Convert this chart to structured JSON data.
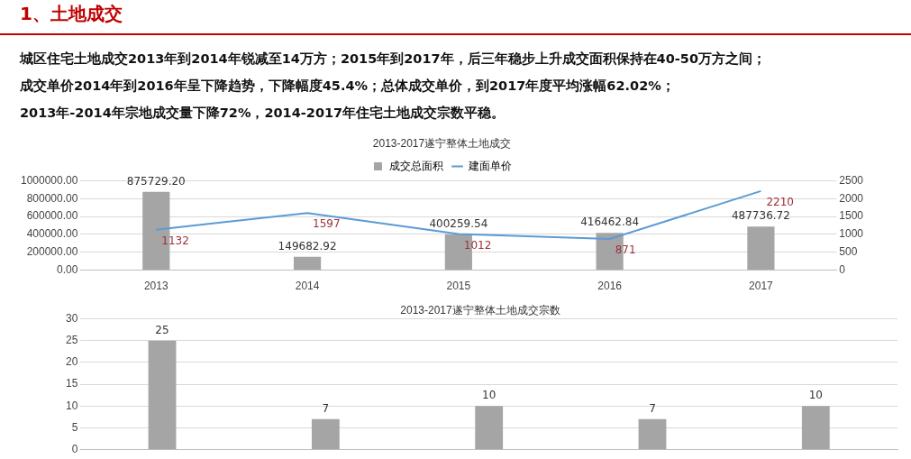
{
  "chart_data": [
    {
      "type": "bar",
      "title": "2013-2017遂宁整体土地成交",
      "annotations": [
        "1、土地成交",
        "城区住宅土地成交2013年到2014年锐减至14万方；2015年到2017年，后三年稳步上升成交面积保持在40-50万方之间；",
        "成交单价2014年到2016年呈下降趋势，下降幅度45.4%；总体成交单价，到2017年度平均涨幅62.02%；",
        "2013年-2014年宗地成交量下降72%，2014-2017年住宅土地成交宗数平稳。"
      ],
      "categories": [
        "2013",
        "2014",
        "2015",
        "2016",
        "2017"
      ],
      "series": [
        {
          "name": "成交总面积",
          "color": "#a5a5a5",
          "values": [
            875729.2,
            149682.92,
            400259.54,
            416462.84,
            487736.72
          ],
          "value_labels": [
            "875729.20",
            "149682.92",
            "400259.54",
            "416462.84",
            "487736.72"
          ]
        },
        {
          "name": "建面单价",
          "type": "line",
          "axis": "y2",
          "color": "#5b9bd5",
          "values": [
            1132,
            1597,
            1012,
            871,
            2210
          ],
          "value_labels": [
            "1132",
            "1597",
            "1012",
            "871",
            "2210"
          ]
        }
      ],
      "ylim": [
        0,
        1000000
      ],
      "yticks": [
        {
          "value": 0,
          "label": "0.00"
        },
        {
          "value": 200000,
          "label": "200000.00"
        },
        {
          "value": 400000,
          "label": "400000.00"
        },
        {
          "value": 600000,
          "label": "600000.00"
        },
        {
          "value": 800000,
          "label": "800000.00"
        },
        {
          "value": 1000000,
          "label": "1000000.00"
        }
      ],
      "y2lim": [
        0,
        2500
      ],
      "y2ticks": [
        0,
        500,
        1000,
        1500,
        2000,
        2500
      ],
      "grid": "y",
      "legend": "top",
      "marker": "none"
    },
    {
      "type": "bar",
      "title": "2013-2017遂宁整体土地成交宗数",
      "categories": [
        null,
        null,
        null,
        null,
        null
      ],
      "values": [
        25,
        7,
        10,
        7,
        10
      ],
      "color": "#a5a5a5",
      "data_labels": true,
      "ylim": [
        0,
        30
      ],
      "yticks": [
        0,
        5,
        10,
        15,
        20,
        25,
        30
      ],
      "grid": "y",
      "tick_labels": "y"
    }
  ]
}
